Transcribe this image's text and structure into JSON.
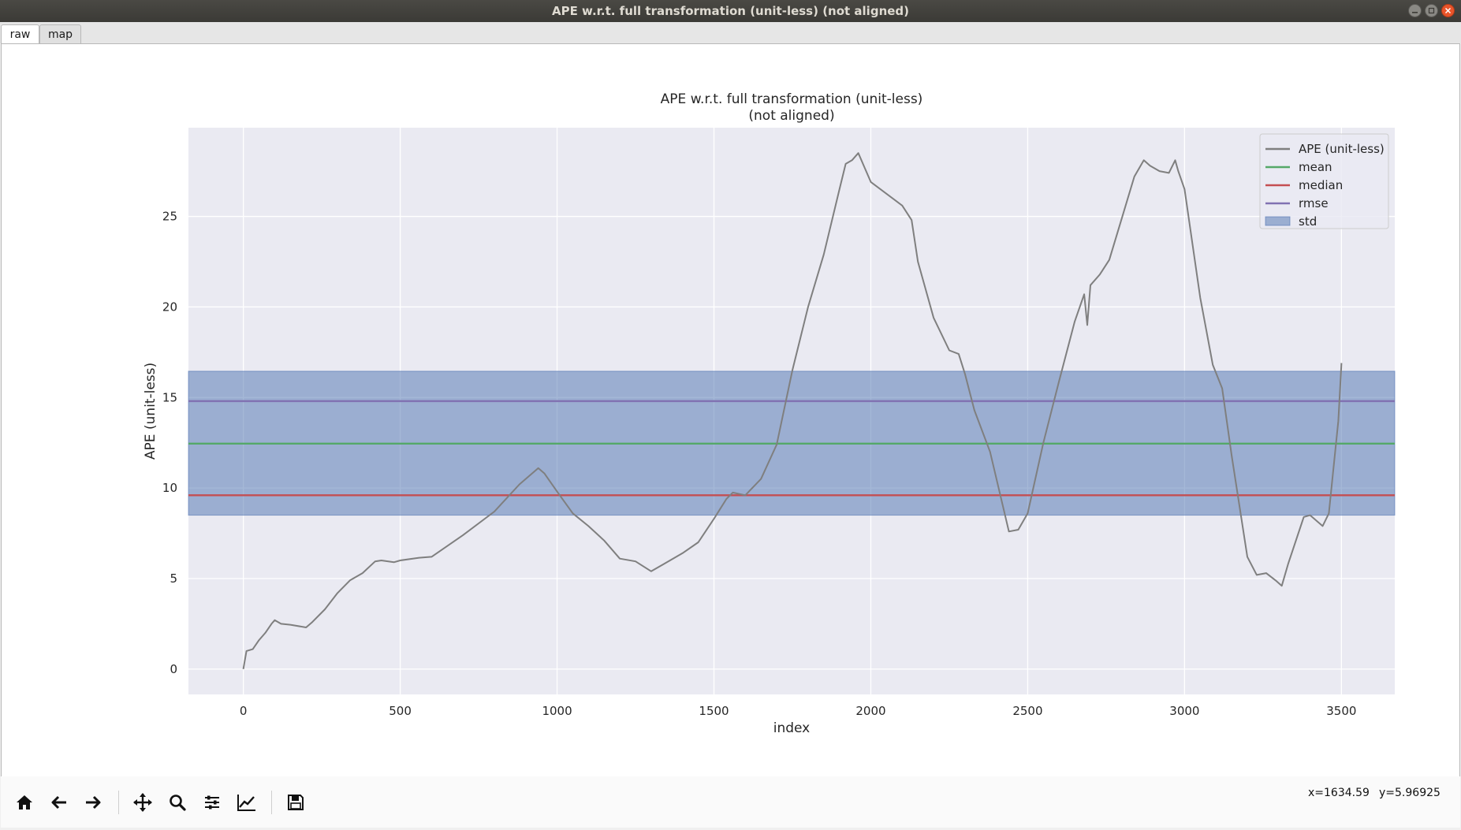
{
  "window": {
    "title": "APE w.r.t. full transformation (unit-less) (not aligned)",
    "controls": [
      "minimize",
      "maximize",
      "close"
    ]
  },
  "tabs": [
    {
      "label": "raw",
      "active": true
    },
    {
      "label": "map",
      "active": false
    }
  ],
  "toolbar": {
    "buttons": [
      {
        "name": "home",
        "icon": "home-icon"
      },
      {
        "name": "back",
        "icon": "arrow-left-icon"
      },
      {
        "name": "forward",
        "icon": "arrow-right-icon"
      },
      {
        "name": "pan",
        "icon": "move-icon"
      },
      {
        "name": "zoom",
        "icon": "magnifier-icon"
      },
      {
        "name": "subplots",
        "icon": "sliders-icon"
      },
      {
        "name": "edit-axis",
        "icon": "chart-line-icon"
      },
      {
        "name": "save",
        "icon": "floppy-disk-icon"
      }
    ]
  },
  "status": {
    "x_readout": "x=1634.59",
    "y_readout": "y=5.96925"
  },
  "chart_data": {
    "type": "line",
    "title": "APE w.r.t. full transformation (unit-less)\n(not aligned)",
    "xlabel": "index",
    "ylabel": "APE (unit-less)",
    "xlim": [
      -175,
      3670
    ],
    "ylim": [
      -1.4,
      29.9
    ],
    "xticks": [
      0,
      500,
      1000,
      1500,
      2000,
      2500,
      3000,
      3500
    ],
    "yticks": [
      0,
      5,
      10,
      15,
      20,
      25
    ],
    "grid": true,
    "legend_position": "top-right",
    "legend": [
      "APE (unit-less)",
      "mean",
      "median",
      "rmse",
      "std"
    ],
    "colors": {
      "ape": "#7f7f7f",
      "mean": "#55a868",
      "median": "#c44e52",
      "rmse": "#8172b2",
      "std": "#4c72b0",
      "background": "#eaeaf2"
    },
    "stats": {
      "mean": 12.45,
      "median": 9.6,
      "rmse": 14.8,
      "std_band": [
        8.5,
        16.45
      ]
    },
    "series": [
      {
        "name": "APE (unit-less)",
        "x": [
          0,
          10,
          30,
          50,
          70,
          90,
          100,
          120,
          150,
          200,
          220,
          260,
          300,
          340,
          380,
          420,
          440,
          480,
          500,
          560,
          600,
          700,
          800,
          880,
          940,
          960,
          1000,
          1050,
          1100,
          1150,
          1200,
          1250,
          1300,
          1340,
          1400,
          1450,
          1500,
          1540,
          1560,
          1600,
          1650,
          1700,
          1750,
          1800,
          1850,
          1900,
          1920,
          1940,
          1960,
          1980,
          2000,
          2100,
          2130,
          2150,
          2200,
          2250,
          2280,
          2300,
          2330,
          2380,
          2440,
          2470,
          2500,
          2550,
          2600,
          2650,
          2680,
          2690,
          2700,
          2730,
          2760,
          2800,
          2840,
          2870,
          2890,
          2920,
          2950,
          2970,
          2980,
          3000,
          3050,
          3090,
          3120,
          3150,
          3200,
          3230,
          3260,
          3290,
          3310,
          3330,
          3380,
          3400,
          3440,
          3460,
          3490,
          3500
        ],
        "y": [
          0,
          1.0,
          1.1,
          1.6,
          2.0,
          2.5,
          2.7,
          2.5,
          2.45,
          2.3,
          2.6,
          3.3,
          4.2,
          4.9,
          5.3,
          5.95,
          6.0,
          5.9,
          6.0,
          6.15,
          6.2,
          7.4,
          8.7,
          10.2,
          11.1,
          10.8,
          9.8,
          8.6,
          7.9,
          7.1,
          6.1,
          5.95,
          5.4,
          5.8,
          6.4,
          7.0,
          8.3,
          9.4,
          9.75,
          9.6,
          10.5,
          12.4,
          16.5,
          20.0,
          22.9,
          26.5,
          27.9,
          28.1,
          28.5,
          27.7,
          26.9,
          25.6,
          24.8,
          22.5,
          19.4,
          17.6,
          17.4,
          16.3,
          14.3,
          12.0,
          7.6,
          7.7,
          8.6,
          12.5,
          15.9,
          19.2,
          20.7,
          19.0,
          21.2,
          21.8,
          22.6,
          24.9,
          27.2,
          28.1,
          27.8,
          27.5,
          27.4,
          28.1,
          27.5,
          26.5,
          20.5,
          16.8,
          15.5,
          11.8,
          6.2,
          5.2,
          5.3,
          4.9,
          4.6,
          5.8,
          8.4,
          8.5,
          7.9,
          8.6,
          13.7,
          16.9
        ]
      },
      {
        "name": "mean",
        "values": [
          12.45
        ]
      },
      {
        "name": "median",
        "values": [
          9.6
        ]
      },
      {
        "name": "rmse",
        "values": [
          14.8
        ]
      },
      {
        "name": "std",
        "values": [
          8.5,
          16.45
        ]
      }
    ]
  }
}
